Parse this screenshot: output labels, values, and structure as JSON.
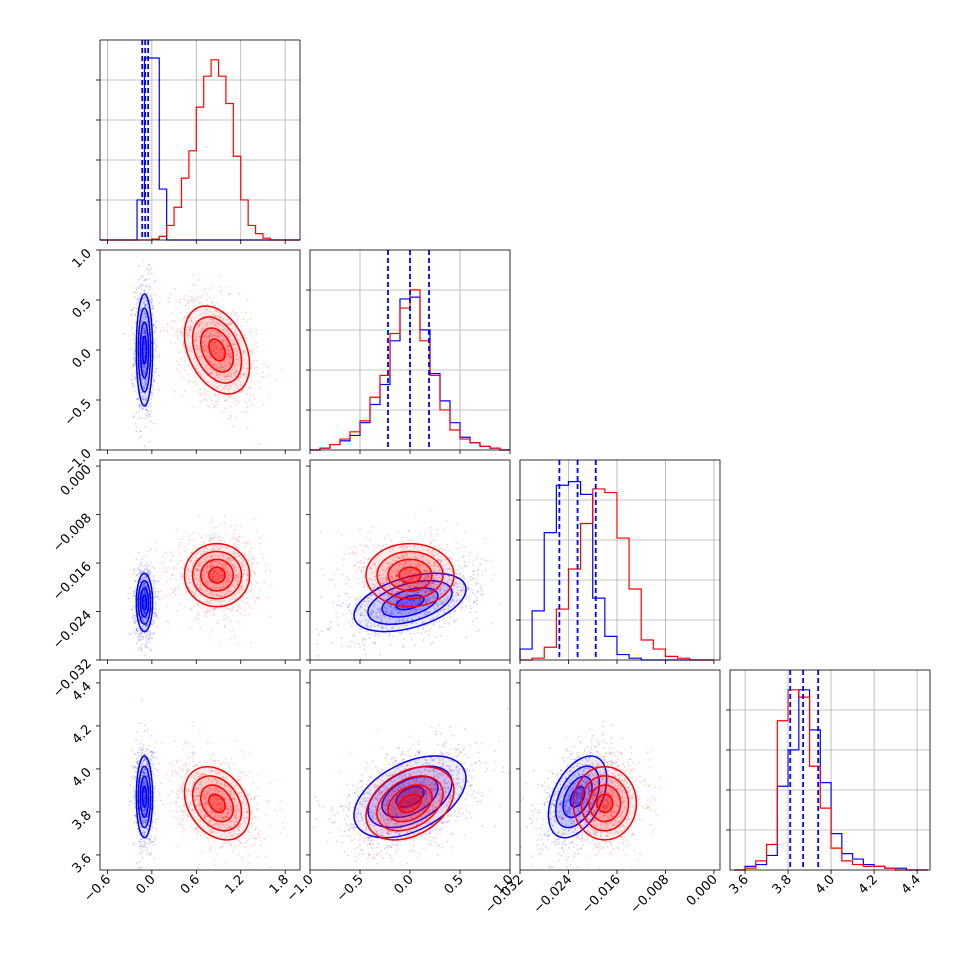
{
  "chart_data": {
    "type": "corner",
    "colors": {
      "blue": "#0000ff",
      "red": "#ff0000"
    },
    "grid": true,
    "series": [
      {
        "color": "blue"
      },
      {
        "color": "red"
      }
    ],
    "parameters": [
      {
        "range": [
          -0.7,
          2.0
        ],
        "ticks": [
          -0.6,
          0.0,
          0.6,
          1.2,
          1.8
        ],
        "tick_labels": [
          "−0.6",
          "0.0",
          "0.6",
          "1.2",
          "1.8"
        ]
      },
      {
        "range": [
          -1.0,
          1.0
        ],
        "ticks": [
          -1.0,
          -0.5,
          0.0,
          0.5,
          1.0
        ],
        "tick_labels": [
          "−1.0",
          "−0.5",
          "0.0",
          "0.5",
          "1.0"
        ]
      },
      {
        "range": [
          -0.032,
          0.001
        ],
        "ticks": [
          -0.032,
          -0.024,
          -0.016,
          -0.008,
          0.0
        ],
        "tick_labels": [
          "−0.032",
          "−0.024",
          "−0.016",
          "−0.008",
          "0.000"
        ]
      },
      {
        "range": [
          3.53,
          4.46
        ],
        "ticks": [
          3.6,
          3.8,
          4.0,
          4.2,
          4.4
        ],
        "tick_labels": [
          "3.6",
          "3.8",
          "4.0",
          "4.2",
          "4.4"
        ]
      }
    ],
    "quantiles_blue": [
      [
        -0.13,
        -0.09,
        -0.05
      ],
      [
        -0.22,
        0.0,
        0.19
      ],
      [
        -0.0255,
        -0.0225,
        -0.0195
      ],
      [
        3.81,
        3.87,
        3.94
      ]
    ],
    "histograms": [
      {
        "edges": [
          -0.7,
          -0.6,
          -0.5,
          -0.4,
          -0.3,
          -0.2,
          -0.1,
          0.0,
          0.1,
          0.2,
          0.3,
          0.4,
          0.5,
          0.6,
          0.7,
          0.8,
          0.9,
          1.0,
          1.1,
          1.2,
          1.3,
          1.4,
          1.5,
          1.6,
          1.7,
          1.8,
          1.9,
          2.0
        ],
        "blue": [
          0,
          0,
          0,
          0,
          0,
          0.22,
          1.0,
          1.0,
          0.28,
          0,
          0,
          0,
          0,
          0,
          0,
          0,
          0,
          0,
          0,
          0,
          0,
          0,
          0,
          0,
          0,
          0,
          0
        ],
        "red": [
          0,
          0,
          0,
          0,
          0,
          0,
          0,
          0.005,
          0.02,
          0.08,
          0.18,
          0.34,
          0.49,
          0.73,
          0.9,
          0.99,
          0.9,
          0.75,
          0.46,
          0.22,
          0.08,
          0.035,
          0.01,
          0,
          0,
          0,
          0
        ]
      },
      {
        "edges": [
          -1.0,
          -0.9,
          -0.8,
          -0.7,
          -0.6,
          -0.5,
          -0.4,
          -0.3,
          -0.2,
          -0.1,
          0.0,
          0.1,
          0.2,
          0.3,
          0.4,
          0.5,
          0.6,
          0.7,
          0.8,
          0.9,
          1.0
        ],
        "blue": [
          0.0,
          0.01,
          0.03,
          0.05,
          0.08,
          0.15,
          0.25,
          0.36,
          0.6,
          0.83,
          0.84,
          0.66,
          0.42,
          0.27,
          0.15,
          0.07,
          0.04,
          0.02,
          0.01,
          0.0
        ],
        "red": [
          0.0,
          0.01,
          0.03,
          0.06,
          0.1,
          0.16,
          0.29,
          0.41,
          0.64,
          0.78,
          0.88,
          0.6,
          0.41,
          0.22,
          0.11,
          0.06,
          0.04,
          0.02,
          0.01,
          0.0
        ]
      },
      {
        "edges": [
          -0.032,
          -0.03,
          -0.028,
          -0.026,
          -0.024,
          -0.022,
          -0.02,
          -0.018,
          -0.016,
          -0.014,
          -0.012,
          -0.01,
          -0.008,
          -0.006,
          -0.004,
          -0.002,
          0.0
        ],
        "blue": [
          0.06,
          0.27,
          0.7,
          0.96,
          0.98,
          0.91,
          0.34,
          0.13,
          0.03,
          0.01,
          0,
          0,
          0,
          0,
          0,
          0
        ],
        "red": [
          0.0,
          0.01,
          0.07,
          0.28,
          0.5,
          0.75,
          0.94,
          0.92,
          0.67,
          0.39,
          0.11,
          0.06,
          0.02,
          0.01,
          0.0,
          0.0
        ]
      },
      {
        "edges": [
          3.55,
          3.6,
          3.65,
          3.7,
          3.75,
          3.8,
          3.85,
          3.9,
          3.95,
          4.0,
          4.05,
          4.1,
          4.15,
          4.2,
          4.25,
          4.3,
          4.35,
          4.4,
          4.45
        ],
        "blue": [
          0.0,
          0.02,
          0.03,
          0.08,
          0.46,
          0.66,
          0.99,
          0.77,
          0.48,
          0.2,
          0.09,
          0.06,
          0.03,
          0.02,
          0.01,
          0.01,
          0.0,
          0.0
        ],
        "red": [
          0.0,
          0.01,
          0.05,
          0.14,
          0.82,
          0.99,
          0.95,
          0.57,
          0.34,
          0.12,
          0.05,
          0.03,
          0.02,
          0.02,
          0.01,
          0.0,
          0.0,
          0.0
        ]
      }
    ],
    "joint": {
      "blue": {
        "mean": [
          -0.1,
          0.0,
          -0.0225,
          3.87
        ],
        "std": [
          0.055,
          0.28,
          0.0024,
          0.095
        ],
        "corr": [
          [
            1,
            0,
            0,
            0
          ],
          [
            0,
            1,
            0.45,
            0.45
          ],
          [
            0,
            0.45,
            1,
            0.45
          ],
          [
            0,
            0.45,
            0.45,
            1
          ]
        ]
      },
      "red": {
        "mean": [
          0.88,
          0.0,
          -0.018,
          3.84
        ],
        "std": [
          0.22,
          0.22,
          0.0026,
          0.085
        ],
        "corr": [
          [
            1,
            -0.35,
            0.0,
            -0.3
          ],
          [
            -0.35,
            1,
            0.0,
            0.35
          ],
          [
            0.0,
            0.0,
            1,
            0.0
          ],
          [
            -0.3,
            0.35,
            0.0,
            1
          ]
        ]
      }
    }
  }
}
